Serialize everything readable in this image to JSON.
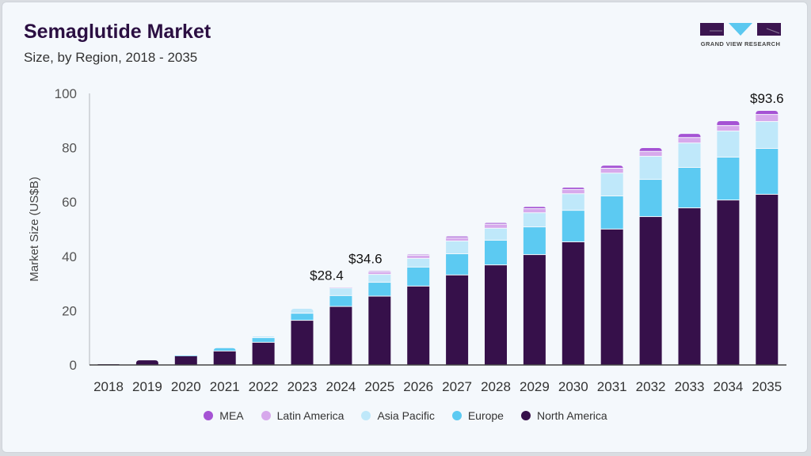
{
  "header": {
    "title": "Semaglutide Market",
    "subtitle": "Size, by Region, 2018 - 2035"
  },
  "logo": {
    "text": "GRAND VIEW RESEARCH",
    "colors": {
      "dark": "#3b1550",
      "accent": "#5bc8f0"
    }
  },
  "chart_data": {
    "type": "bar",
    "stacked": true,
    "title": "Semaglutide Market",
    "subtitle": "Size, by Region, 2018 - 2035",
    "xlabel": "",
    "ylabel": "Market Size (US$B)",
    "ylim": [
      0,
      100
    ],
    "yticks": [
      "0",
      "20",
      "40",
      "60",
      "80",
      "100"
    ],
    "grid": false,
    "legend_position": "bottom",
    "categories": [
      "2018",
      "2019",
      "2020",
      "2021",
      "2022",
      "2023",
      "2024",
      "2025",
      "2026",
      "2027",
      "2028",
      "2029",
      "2030",
      "2031",
      "2032",
      "2033",
      "2034",
      "2035"
    ],
    "series": [
      {
        "name": "North America",
        "color": "#36104a",
        "values": [
          0.3,
          1.7,
          3.2,
          5.0,
          8.2,
          16.3,
          21.4,
          25.2,
          28.9,
          33.0,
          36.7,
          40.5,
          45.2,
          49.9,
          54.5,
          57.7,
          60.6,
          62.7
        ]
      },
      {
        "name": "Europe",
        "color": "#5ccaf2",
        "values": [
          0,
          0,
          0.1,
          1.2,
          1.7,
          2.6,
          4.0,
          5.1,
          7.0,
          7.8,
          9.1,
          10.2,
          11.6,
          12.2,
          13.7,
          14.9,
          15.8,
          16.9
        ]
      },
      {
        "name": "Asia Pacific",
        "color": "#bfe8fa",
        "values": [
          0,
          0,
          0,
          0,
          0.6,
          1.8,
          2.8,
          2.9,
          3.2,
          4.7,
          4.4,
          5.2,
          6.1,
          8.4,
          8.5,
          9.0,
          9.6,
          9.9
        ]
      },
      {
        "name": "Latin America",
        "color": "#d7a9ec",
        "values": [
          0,
          0,
          0,
          0,
          0,
          0,
          0.2,
          1.0,
          1.2,
          1.2,
          1.5,
          1.5,
          1.6,
          1.8,
          1.8,
          2.0,
          2.0,
          2.6
        ]
      },
      {
        "name": "MEA",
        "color": "#a553d4",
        "values": [
          0,
          0,
          0,
          0,
          0,
          0,
          0,
          0.4,
          0.4,
          0.6,
          0.6,
          0.8,
          0.8,
          1.1,
          1.4,
          1.5,
          1.8,
          1.5
        ]
      }
    ],
    "annotations": [
      {
        "category": "2024",
        "text": "$28.4"
      },
      {
        "category": "2025",
        "text": "$34.6"
      },
      {
        "category": "2035",
        "text": "$93.6"
      }
    ]
  },
  "legend": [
    "MEA",
    "Latin America",
    "Asia Pacific",
    "Europe",
    "North America"
  ]
}
